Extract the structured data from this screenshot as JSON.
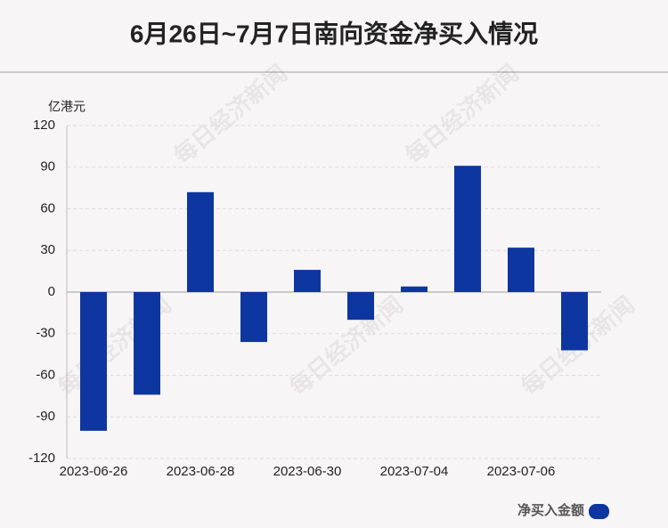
{
  "chart_data": {
    "type": "bar",
    "title": "6月26日~7月7日南向资金净买入情况",
    "y_unit": "亿港元",
    "categories": [
      "2023-06-26",
      null,
      "2023-06-28",
      null,
      "2023-06-30",
      null,
      "2023-07-04",
      null,
      "2023-07-06",
      null
    ],
    "series": [
      {
        "name": "净买入金额",
        "color": "#0e36a0",
        "values": [
          -100,
          -74,
          72,
          -36,
          16,
          -20,
          4,
          91,
          32,
          -42
        ]
      }
    ],
    "ylim": [
      -120,
      120
    ],
    "yticks": [
      -120,
      -90,
      -60,
      -30,
      0,
      30,
      60,
      90,
      120
    ],
    "grid": true,
    "watermark": "每日经济新闻"
  }
}
